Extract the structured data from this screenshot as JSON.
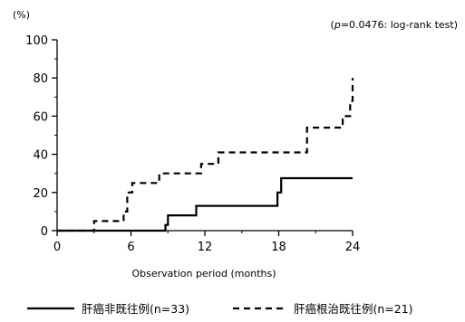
{
  "chart_data": {
    "type": "line",
    "unit_label": "(%)",
    "annotation": "(p=0.0476: log-rank test)",
    "annotation_parts": {
      "open": "(",
      "p": "p",
      "rest": "=0.0476: log-rank test)"
    },
    "xlabel": "Observation period (months)",
    "ylabel": "",
    "xlim": [
      0,
      24
    ],
    "ylim": [
      0,
      100
    ],
    "x_ticks": [
      0,
      6,
      12,
      18,
      24
    ],
    "y_ticks": [
      0,
      20,
      40,
      60,
      80,
      100
    ],
    "grid": false,
    "legend_position": "bottom",
    "series": [
      {
        "name": "肝癌非既往例(n=33)",
        "style": "solid",
        "points": [
          [
            0,
            0
          ],
          [
            8.8,
            0
          ],
          [
            8.8,
            3
          ],
          [
            9.0,
            3
          ],
          [
            9.0,
            8
          ],
          [
            11.3,
            8
          ],
          [
            11.3,
            13
          ],
          [
            17.9,
            13
          ],
          [
            17.9,
            20
          ],
          [
            18.2,
            20
          ],
          [
            18.2,
            27.5
          ],
          [
            24,
            27.5
          ]
        ]
      },
      {
        "name": "肝癌根治既往例(n=21)",
        "style": "dashed",
        "points": [
          [
            0,
            0
          ],
          [
            3.0,
            0
          ],
          [
            3.0,
            5
          ],
          [
            5.4,
            5
          ],
          [
            5.4,
            10
          ],
          [
            5.7,
            10
          ],
          [
            5.7,
            20
          ],
          [
            6.1,
            20
          ],
          [
            6.1,
            25
          ],
          [
            8.3,
            25
          ],
          [
            8.3,
            30
          ],
          [
            11.7,
            30
          ],
          [
            11.7,
            35
          ],
          [
            13.1,
            35
          ],
          [
            13.1,
            41
          ],
          [
            20.3,
            41
          ],
          [
            20.3,
            54
          ],
          [
            23.2,
            54
          ],
          [
            23.2,
            60
          ],
          [
            23.8,
            60
          ],
          [
            23.8,
            68
          ],
          [
            24,
            68
          ],
          [
            24,
            80
          ]
        ]
      }
    ]
  }
}
